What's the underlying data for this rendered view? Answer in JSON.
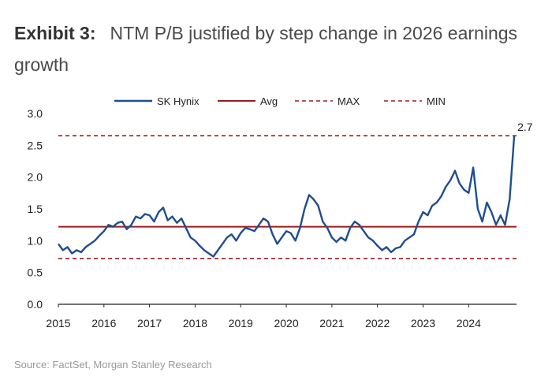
{
  "exhibit": {
    "label": "Exhibit 3:",
    "title": "NTM P/B justified by step change in 2026 earnings growth"
  },
  "source": "Source: FactSet, Morgan Stanley Research",
  "colors": {
    "series": "#1f4e8c",
    "avg": "#9b1c1c",
    "bounds": "#9b1c1c",
    "axis": "#222222"
  },
  "chart_data": {
    "type": "line",
    "title": "NTM P/B justified by step change in 2026 earnings growth",
    "xlabel": "",
    "ylabel": "",
    "ylim": [
      0,
      3.0
    ],
    "xlim": [
      2015,
      2025.05
    ],
    "x_ticks": [
      "2015",
      "2016",
      "2017",
      "2018",
      "2019",
      "2020",
      "2021",
      "2022",
      "2023",
      "2024"
    ],
    "y_ticks": [
      "0.0",
      "0.5",
      "1.0",
      "1.5",
      "2.0",
      "2.5",
      "3.0"
    ],
    "legend": [
      "SK Hynix",
      "Avg",
      "MAX",
      "MIN"
    ],
    "legend_position": "top",
    "end_label": "2.7",
    "avg": 1.22,
    "max": 2.65,
    "min": 0.72,
    "series": [
      {
        "name": "SK Hynix",
        "x": [
          2015.0,
          2015.1,
          2015.2,
          2015.3,
          2015.4,
          2015.5,
          2015.6,
          2015.7,
          2015.8,
          2015.9,
          2016.0,
          2016.1,
          2016.2,
          2016.3,
          2016.4,
          2016.5,
          2016.6,
          2016.7,
          2016.8,
          2016.9,
          2017.0,
          2017.1,
          2017.2,
          2017.3,
          2017.4,
          2017.5,
          2017.6,
          2017.7,
          2017.8,
          2017.9,
          2018.0,
          2018.1,
          2018.2,
          2018.3,
          2018.4,
          2018.5,
          2018.6,
          2018.7,
          2018.8,
          2018.9,
          2019.0,
          2019.1,
          2019.2,
          2019.3,
          2019.4,
          2019.5,
          2019.6,
          2019.7,
          2019.8,
          2019.9,
          2020.0,
          2020.1,
          2020.2,
          2020.3,
          2020.4,
          2020.5,
          2020.6,
          2020.7,
          2020.8,
          2020.9,
          2021.0,
          2021.1,
          2021.2,
          2021.3,
          2021.4,
          2021.5,
          2021.6,
          2021.7,
          2021.8,
          2021.9,
          2022.0,
          2022.1,
          2022.2,
          2022.3,
          2022.4,
          2022.5,
          2022.6,
          2022.7,
          2022.8,
          2022.9,
          2023.0,
          2023.1,
          2023.2,
          2023.3,
          2023.4,
          2023.5,
          2023.6,
          2023.7,
          2023.8,
          2023.9,
          2024.0,
          2024.1,
          2024.2,
          2024.3,
          2024.4,
          2024.5,
          2024.6,
          2024.7,
          2024.8,
          2024.9,
          2025.0
        ],
        "values": [
          0.95,
          0.85,
          0.9,
          0.8,
          0.85,
          0.82,
          0.9,
          0.95,
          1.0,
          1.08,
          1.15,
          1.25,
          1.22,
          1.28,
          1.3,
          1.18,
          1.25,
          1.38,
          1.35,
          1.42,
          1.4,
          1.3,
          1.45,
          1.52,
          1.32,
          1.38,
          1.28,
          1.35,
          1.2,
          1.05,
          1.0,
          0.92,
          0.85,
          0.8,
          0.75,
          0.85,
          0.95,
          1.05,
          1.1,
          1.0,
          1.12,
          1.2,
          1.18,
          1.15,
          1.25,
          1.35,
          1.3,
          1.1,
          0.95,
          1.05,
          1.15,
          1.12,
          1.0,
          1.2,
          1.5,
          1.72,
          1.65,
          1.55,
          1.3,
          1.2,
          1.05,
          0.98,
          1.05,
          1.0,
          1.2,
          1.3,
          1.25,
          1.15,
          1.05,
          1.0,
          0.92,
          0.85,
          0.9,
          0.82,
          0.88,
          0.9,
          1.0,
          1.05,
          1.1,
          1.3,
          1.45,
          1.4,
          1.55,
          1.6,
          1.7,
          1.85,
          1.95,
          2.1,
          1.9,
          1.8,
          1.75,
          2.15,
          1.5,
          1.3,
          1.6,
          1.45,
          1.25,
          1.4,
          1.25,
          1.65,
          2.65
        ]
      }
    ]
  }
}
